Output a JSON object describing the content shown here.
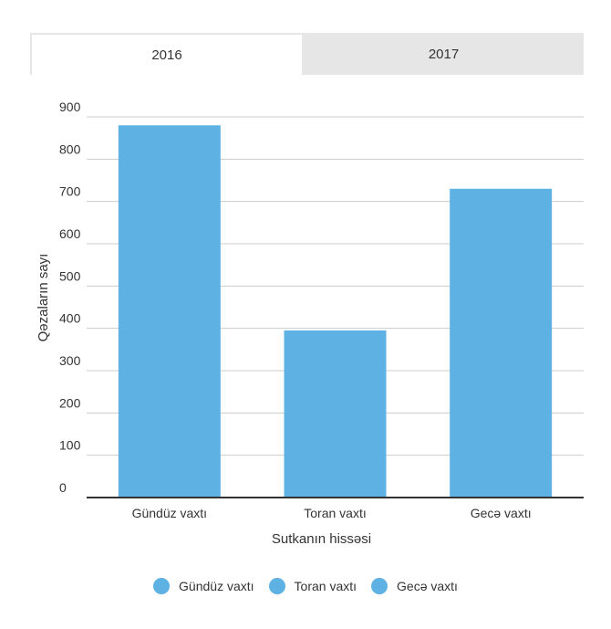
{
  "tabs": [
    {
      "label": "2016",
      "active": true
    },
    {
      "label": "2017",
      "active": false
    }
  ],
  "chart_data": {
    "type": "bar",
    "categories": [
      "Gündüz vaxtı",
      "Toran vaxtı",
      "Gecə vaxtı"
    ],
    "values": [
      880,
      395,
      730
    ],
    "xlabel": "Sutkanın hissəsi",
    "ylabel": "Qəzaların sayı",
    "ylim": [
      0,
      900
    ],
    "yticks": [
      0,
      100,
      200,
      300,
      400,
      500,
      600,
      700,
      800,
      900
    ],
    "grid": true,
    "bar_color": "#5db2e3",
    "legend": [
      "Gündüz vaxtı",
      "Toran vaxtı",
      "Gecə vaxtı"
    ],
    "legend_position": "bottom"
  }
}
